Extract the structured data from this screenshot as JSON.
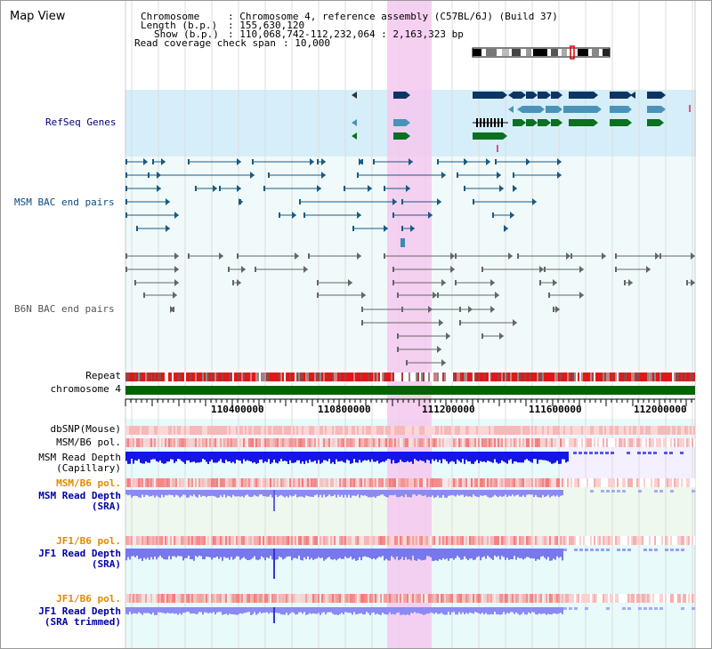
{
  "view_title": "Map View",
  "header": {
    "chromosome_key": "Chromosome",
    "chromosome_val": ": Chromosome 4, reference assembly (C57BL/6J) (Build 37)",
    "length_key": "Length (b.p.)",
    "length_val": ": 155,630,120",
    "show_key": "Show (b.p.)",
    "show_val": ": 110,068,742-112,232,064 : 2,163,323 bp",
    "coverage_key": "Read coverage check span",
    "coverage_val": ": 10,000"
  },
  "tracks": {
    "refseq": "RefSeq Genes",
    "msm_bac": "MSM BAC end pairs",
    "b6n_bac": "B6N BAC end pairs",
    "repeat": "Repeat",
    "chromosome": "chromosome 4",
    "dbsnp": "dbSNP(Mouse)",
    "msm_b6_pol": "MSM/B6 pol.",
    "msm_read_depth_cap_1": "MSM Read Depth",
    "msm_read_depth_cap_2": "(Capillary)",
    "msm_b6_pol_2": "MSM/B6 pol.",
    "msm_read_depth_sra_1": "MSM Read Depth",
    "msm_read_depth_sra_2": "(SRA)",
    "jf1_b6_pol": "JF1/B6 pol.",
    "jf1_read_depth_1": "JF1 Read Depth",
    "jf1_read_depth_2": "(SRA)",
    "jf1_b6_pol_2": "JF1/B6 pol.",
    "jf1_read_depth_trim_1": "JF1 Read Depth",
    "jf1_read_depth_trim_2": "(SRA trimmed)"
  },
  "axis": {
    "ticks": [
      "110400000",
      "110800000",
      "111200000",
      "111600000",
      "112000000"
    ]
  },
  "colors": {
    "refseq_bg": "#d6eefa",
    "track_bg": "#e8fafa",
    "highlight": "#f5c8ef",
    "gene_navy": "#0d3463",
    "gene_steel": "#4a93b8",
    "gene_green": "#0b7020",
    "repeat_red": "#e02020",
    "chromosome_green": "#006400",
    "depth_blue": "#2020e0",
    "depth_light": "#8080f0",
    "pol_red": "#f08080"
  }
}
